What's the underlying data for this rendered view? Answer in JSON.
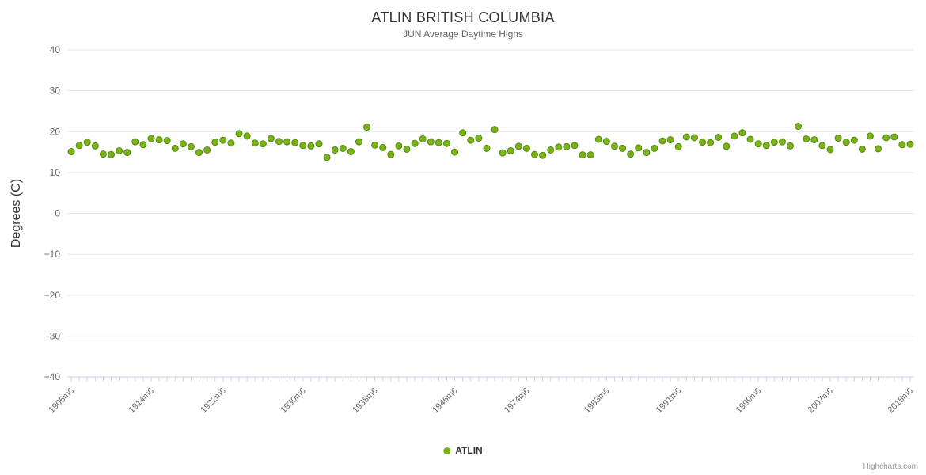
{
  "header": {
    "title": "ATLIN BRITISH COLUMBIA",
    "subtitle": "JUN Average Daytime Highs"
  },
  "legend": {
    "label": "ATLIN"
  },
  "credits": {
    "text": "Highcharts.com"
  },
  "chart_data": {
    "type": "scatter",
    "title": "ATLIN BRITISH COLUMBIA",
    "subtitle": "JUN Average Daytime Highs",
    "xlabel": "",
    "ylabel": "Degrees (C)",
    "ylim": [
      -40,
      40
    ],
    "y_tick_interval": 10,
    "grid": true,
    "legend_position": "bottom",
    "colors": {
      "marker": "#7ab317",
      "marker_stroke": "#568a10",
      "gridline": "#e6e6e6",
      "axis_line": "#ccd6eb",
      "axis_label": "#666666",
      "title": "#333333"
    },
    "x_tick_labels": [
      "1906m6",
      "1914m6",
      "1922m6",
      "1930m6",
      "1938m6",
      "1946m6",
      "1974m6",
      "1983m6",
      "1991m6",
      "1999m6",
      "2007m6",
      "2015m6"
    ],
    "series": [
      {
        "name": "ATLIN",
        "color": "#7ab317",
        "values": [
          15.1,
          16.6,
          17.4,
          16.5,
          14.5,
          14.4,
          15.3,
          14.9,
          17.5,
          16.8,
          18.3,
          18.0,
          17.8,
          15.9,
          17.0,
          16.3,
          14.9,
          15.5,
          17.4,
          17.9,
          17.2,
          19.5,
          18.9,
          17.2,
          17.0,
          18.3,
          17.6,
          17.5,
          17.3,
          16.6,
          16.5,
          17.0,
          13.7,
          15.5,
          15.9,
          15.1,
          17.5,
          21.1,
          16.7,
          16.1,
          14.4,
          16.5,
          15.7,
          17.1,
          18.2,
          17.5,
          17.3,
          17.1,
          15.0,
          19.7,
          17.9,
          18.4,
          15.9,
          20.5,
          14.8,
          15.3,
          16.4,
          15.9,
          14.4,
          14.2,
          15.5,
          16.2,
          16.3,
          16.6,
          14.3,
          14.3,
          18.1,
          17.6,
          16.4,
          15.9,
          14.5,
          16.0,
          14.9,
          15.9,
          17.7,
          18.0,
          16.3,
          18.7,
          18.5,
          17.4,
          17.3,
          18.6,
          16.4,
          18.9,
          19.7,
          18.1,
          17.0,
          16.6,
          17.4,
          17.5,
          16.5,
          21.3,
          18.2,
          18.0,
          16.6,
          15.6,
          18.4,
          17.4,
          17.9,
          15.7,
          18.9,
          15.8,
          18.5,
          18.7,
          16.8,
          16.9
        ]
      }
    ]
  }
}
